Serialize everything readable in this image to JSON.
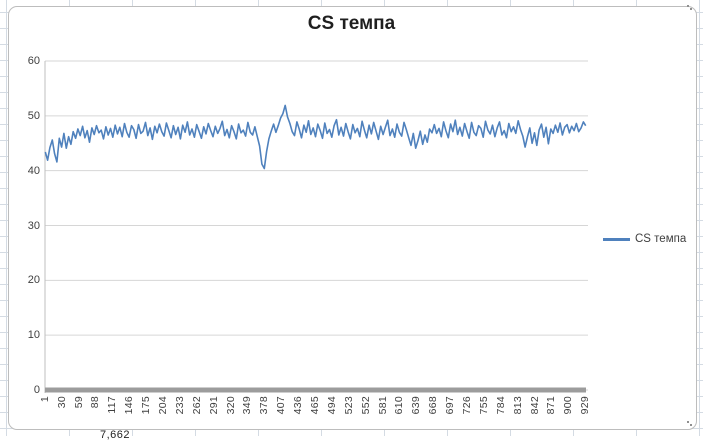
{
  "spreadsheet": {
    "partial_cell_value": "7,662"
  },
  "chart_data": {
    "type": "line",
    "title": "CS темпа",
    "xlabel": "",
    "ylabel": "",
    "ylim": [
      0,
      60
    ],
    "y_ticks": [
      0,
      10,
      20,
      30,
      40,
      50,
      60
    ],
    "x_total": 929,
    "x_tick_labels": [
      "1",
      "30",
      "59",
      "88",
      "117",
      "146",
      "175",
      "204",
      "233",
      "262",
      "291",
      "320",
      "349",
      "378",
      "407",
      "436",
      "465",
      "494",
      "523",
      "552",
      "581",
      "610",
      "639",
      "668",
      "697",
      "726",
      "755",
      "784",
      "813",
      "842",
      "871",
      "900",
      "929"
    ],
    "grid": true,
    "legend_position": "right",
    "series": [
      {
        "name": "CS темпа",
        "color": "#4F81BD",
        "x_start": 1,
        "x_step": 4,
        "values": [
          43.4,
          41.9,
          44.2,
          45.6,
          43.1,
          41.6,
          45.9,
          44.3,
          46.8,
          44.1,
          46.2,
          44.8,
          47.1,
          45.9,
          47.6,
          46.4,
          48.1,
          46.0,
          47.3,
          45.2,
          47.8,
          46.6,
          48.2,
          46.9,
          47.4,
          45.8,
          48.0,
          46.5,
          47.7,
          46.1,
          48.3,
          46.7,
          47.9,
          46.2,
          48.6,
          47.0,
          46.1,
          48.2,
          47.5,
          45.9,
          48.4,
          46.8,
          47.2,
          48.8,
          46.4,
          47.8,
          45.7,
          48.1,
          46.9,
          48.5,
          47.1,
          46.3,
          48.7,
          47.4,
          46.0,
          48.2,
          46.6,
          47.9,
          45.8,
          48.3,
          47.0,
          48.9,
          46.5,
          47.6,
          46.1,
          48.4,
          47.2,
          45.9,
          48.0,
          46.7,
          48.6,
          47.3,
          46.2,
          48.1,
          46.8,
          47.7,
          49.0,
          46.4,
          47.5,
          46.0,
          48.2,
          47.1,
          45.8,
          48.5,
          46.9,
          47.4,
          46.3,
          48.8,
          47.0,
          46.5,
          48.0,
          46.2,
          44.5,
          41.2,
          40.4,
          43.5,
          45.8,
          47.2,
          48.5,
          47.0,
          48.2,
          49.6,
          50.4,
          51.9,
          49.8,
          48.6,
          47.1,
          46.4,
          48.9,
          47.6,
          46.0,
          48.3,
          47.0,
          49.1,
          46.6,
          47.8,
          46.2,
          48.5,
          47.3,
          45.9,
          48.7,
          46.8,
          47.5,
          46.1,
          48.2,
          49.3,
          46.5,
          47.9,
          46.3,
          48.6,
          47.1,
          45.8,
          48.4,
          46.9,
          47.7,
          46.2,
          49.0,
          47.4,
          46.0,
          48.3,
          46.7,
          48.8,
          47.2,
          45.7,
          48.1,
          46.6,
          47.9,
          49.2,
          46.4,
          47.6,
          46.1,
          48.5,
          47.0,
          46.3,
          48.8,
          47.5,
          46.0,
          44.6,
          46.8,
          44.1,
          45.5,
          47.2,
          44.8,
          46.5,
          45.2,
          47.6,
          46.9,
          48.4,
          46.8,
          47.7,
          46.2,
          48.9,
          47.3,
          46.0,
          48.5,
          47.1,
          49.2,
          46.6,
          47.9,
          46.3,
          48.6,
          47.2,
          45.9,
          48.8,
          47.0,
          46.4,
          48.2,
          47.7,
          46.1,
          49.0,
          47.4,
          46.7,
          48.3,
          46.2,
          47.8,
          48.9,
          46.5,
          47.3,
          46.0,
          48.6,
          47.1,
          48.0,
          46.8,
          49.1,
          47.5,
          46.3,
          44.3,
          46.2,
          47.8,
          45.0,
          46.9,
          44.6,
          47.4,
          48.5,
          46.1,
          47.9,
          44.9,
          47.6,
          46.8,
          48.3,
          47.0,
          48.7,
          46.5,
          47.9,
          48.4,
          46.9,
          48.1,
          47.3,
          48.6,
          47.1,
          47.8,
          48.9,
          48.2
        ]
      }
    ]
  }
}
